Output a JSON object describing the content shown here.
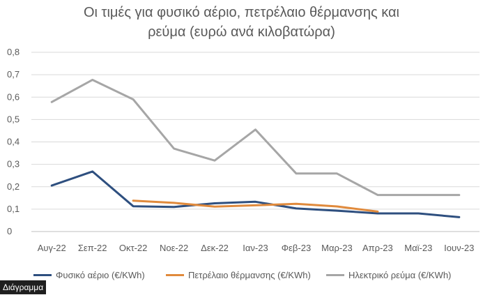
{
  "chart_data": {
    "type": "line",
    "title_lines": [
      "Οι τιμές για φυσικό αέριο, πετρέλαιο θέρμανσης και",
      "ρεύμα (ευρώ ανά κιλοβατώρα)"
    ],
    "categories": [
      "Αυγ-22",
      "Σεπ-22",
      "Οκτ-22",
      "Νοε-22",
      "Δεκ-22",
      "Ιαν-23",
      "Φεβ-23",
      "Μαρ-23",
      "Απρ-23",
      "Μαϊ-23",
      "Ιουν-23"
    ],
    "y_ticks": [
      "0",
      "0,1",
      "0,2",
      "0,3",
      "0,4",
      "0,5",
      "0,6",
      "0,7",
      "0,8"
    ],
    "ylim": [
      0,
      0.8
    ],
    "grid": true,
    "legend_position": "bottom",
    "series": [
      {
        "name": "Φυσικό αέριο (€/KWh)",
        "color": "#2e4f7f",
        "values": [
          0.205,
          0.268,
          0.113,
          0.11,
          0.126,
          0.133,
          0.103,
          0.093,
          0.081,
          0.081,
          0.064
        ]
      },
      {
        "name": "Πετρέλαιο θέρμανσης (€/KWh)",
        "color": "#e08a3c",
        "values": [
          null,
          null,
          0.138,
          0.128,
          0.111,
          0.117,
          0.124,
          0.112,
          0.089,
          null,
          null
        ]
      },
      {
        "name": "Ηλεκτρικό ρεύμα (€/KWh)",
        "color": "#a6a6a6",
        "values": [
          0.578,
          0.677,
          0.59,
          0.37,
          0.317,
          0.455,
          0.259,
          0.259,
          0.163,
          0.163,
          0.163
        ]
      }
    ]
  },
  "caption_tag": "Διάγραμμα"
}
